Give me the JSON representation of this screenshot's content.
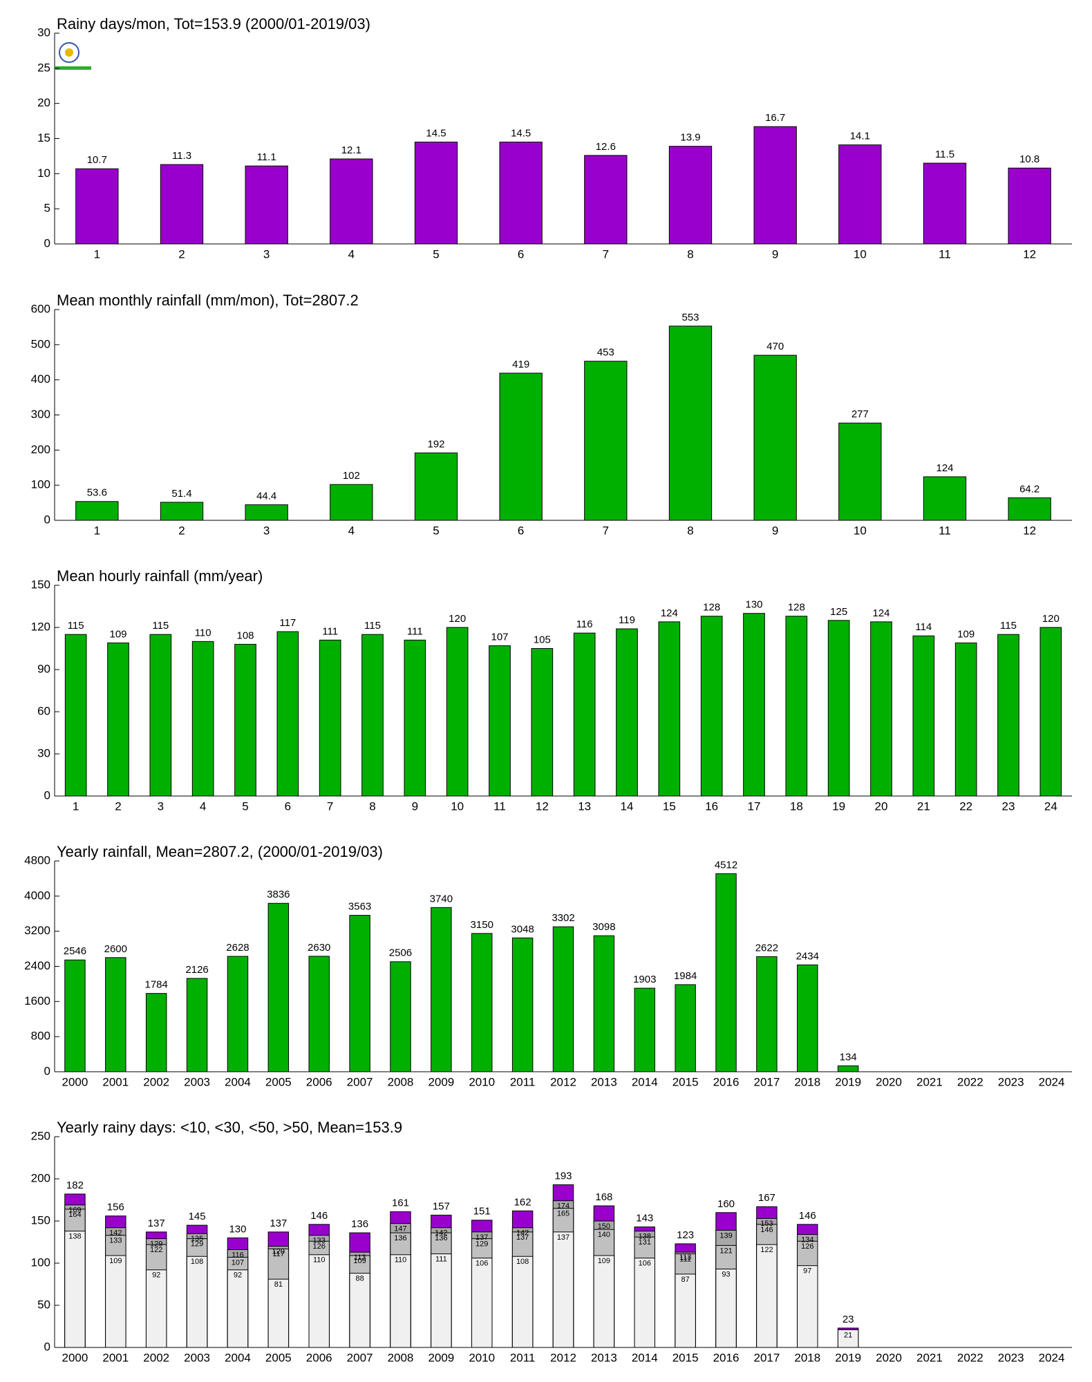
{
  "chart_data": [
    {
      "type": "bar",
      "title": "Rainy days/mon, Tot=153.9 (2000/01-2019/03)",
      "categories": [
        "1",
        "2",
        "3",
        "4",
        "5",
        "6",
        "7",
        "8",
        "9",
        "10",
        "11",
        "12"
      ],
      "values": [
        10.7,
        11.3,
        11.1,
        12.1,
        14.5,
        14.5,
        12.6,
        13.9,
        16.7,
        14.1,
        11.5,
        10.8
      ],
      "color": "#9900cc",
      "ylim": [
        0,
        30
      ],
      "yticks": [
        0,
        5,
        10,
        15,
        20,
        25,
        30
      ]
    },
    {
      "type": "bar",
      "title": "Mean monthly rainfall (mm/mon), Tot=2807.2",
      "categories": [
        "1",
        "2",
        "3",
        "4",
        "5",
        "6",
        "7",
        "8",
        "9",
        "10",
        "11",
        "12"
      ],
      "values": [
        53.6,
        51.4,
        44.4,
        102,
        192,
        419,
        453,
        553,
        470,
        277,
        124,
        64.2
      ],
      "color": "#00b000",
      "ylim": [
        0,
        600
      ],
      "yticks": [
        0,
        100,
        200,
        300,
        400,
        500,
        600
      ]
    },
    {
      "type": "bar",
      "title": "Mean hourly rainfall (mm/year)",
      "categories": [
        "1",
        "2",
        "3",
        "4",
        "5",
        "6",
        "7",
        "8",
        "9",
        "10",
        "11",
        "12",
        "13",
        "14",
        "15",
        "16",
        "17",
        "18",
        "19",
        "20",
        "21",
        "22",
        "23",
        "24"
      ],
      "values": [
        115,
        109,
        115,
        110,
        108,
        117,
        111,
        115,
        111,
        120,
        107,
        105,
        116,
        119,
        124,
        128,
        130,
        128,
        125,
        124,
        114,
        109,
        115,
        120
      ],
      "color": "#00b000",
      "ylim": [
        0,
        150
      ],
      "yticks": [
        0,
        30,
        60,
        90,
        120,
        150
      ]
    },
    {
      "type": "bar",
      "title": "Yearly rainfall, Mean=2807.2, (2000/01-2019/03)",
      "categories": [
        "2000",
        "2001",
        "2002",
        "2003",
        "2004",
        "2005",
        "2006",
        "2007",
        "2008",
        "2009",
        "2010",
        "2011",
        "2012",
        "2013",
        "2014",
        "2015",
        "2016",
        "2017",
        "2018",
        "2019",
        "2020",
        "2021",
        "2022",
        "2023",
        "2024"
      ],
      "values": [
        2546,
        2600,
        1784,
        2126,
        2628,
        3836,
        2630,
        3563,
        2506,
        3740,
        3150,
        3048,
        3302,
        3098,
        1903,
        1984,
        4512,
        2622,
        2434,
        134,
        null,
        null,
        null,
        null,
        null
      ],
      "color": "#00b000",
      "ylim": [
        0,
        4800
      ],
      "yticks": [
        0,
        800,
        1600,
        2400,
        3200,
        4000,
        4800
      ]
    },
    {
      "type": "bar",
      "overlap": true,
      "title": "Yearly rainy days: <10, <30, <50, >50, Mean=153.9",
      "categories": [
        "2000",
        "2001",
        "2002",
        "2003",
        "2004",
        "2005",
        "2006",
        "2007",
        "2008",
        "2009",
        "2010",
        "2011",
        "2012",
        "2013",
        "2014",
        "2015",
        "2016",
        "2017",
        "2018",
        "2019",
        "2020",
        "2021",
        "2022",
        "2023",
        "2024"
      ],
      "series": [
        {
          "color": "#f0f0f0",
          "values": [
            138,
            109,
            92,
            108,
            92,
            81,
            110,
            88,
            110,
            111,
            106,
            108,
            137,
            109,
            106,
            87,
            93,
            122,
            97,
            21,
            null,
            null,
            null,
            null,
            null
          ]
        },
        {
          "color": "#c0c0c0",
          "values": [
            164,
            133,
            122,
            129,
            107,
            117,
            126,
            109,
            136,
            136,
            129,
            137,
            165,
            140,
            131,
            111,
            121,
            146,
            126,
            null,
            null,
            null,
            null,
            null,
            null
          ]
        },
        {
          "color": "#a8a8a8",
          "values": [
            169,
            142,
            129,
            135,
            116,
            120,
            133,
            113,
            147,
            142,
            137,
            142,
            174,
            150,
            138,
            113,
            139,
            153,
            134,
            null,
            null,
            null,
            null,
            null,
            null
          ]
        },
        {
          "color": "#9900cc",
          "values": [
            182,
            156,
            137,
            145,
            130,
            137,
            146,
            136,
            161,
            157,
            151,
            162,
            193,
            168,
            143,
            123,
            160,
            167,
            146,
            23,
            null,
            null,
            null,
            null,
            null
          ]
        }
      ],
      "ylim": [
        0,
        250
      ],
      "yticks": [
        0,
        50,
        100,
        150,
        200,
        250
      ]
    }
  ]
}
